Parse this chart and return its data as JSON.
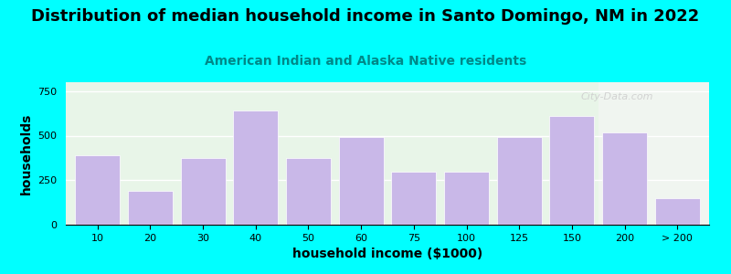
{
  "categories": [
    "10",
    "20",
    "30",
    "40",
    "50",
    "60",
    "75",
    "100",
    "125",
    "150",
    "200",
    "> 200"
  ],
  "values": [
    390,
    190,
    375,
    640,
    375,
    490,
    295,
    295,
    490,
    610,
    520,
    150
  ],
  "bar_color": "#c9b8e8",
  "title": "Distribution of median household income in Santo Domingo, NM in 2022",
  "subtitle": "American Indian and Alaska Native residents",
  "xlabel": "household income ($1000)",
  "ylabel": "households",
  "ylim": [
    0,
    800
  ],
  "yticks": [
    0,
    250,
    500,
    750
  ],
  "background_color": "#00ffff",
  "title_fontsize": 13,
  "subtitle_fontsize": 10,
  "axis_label_fontsize": 10,
  "tick_fontsize": 8,
  "watermark": "City-Data.com"
}
